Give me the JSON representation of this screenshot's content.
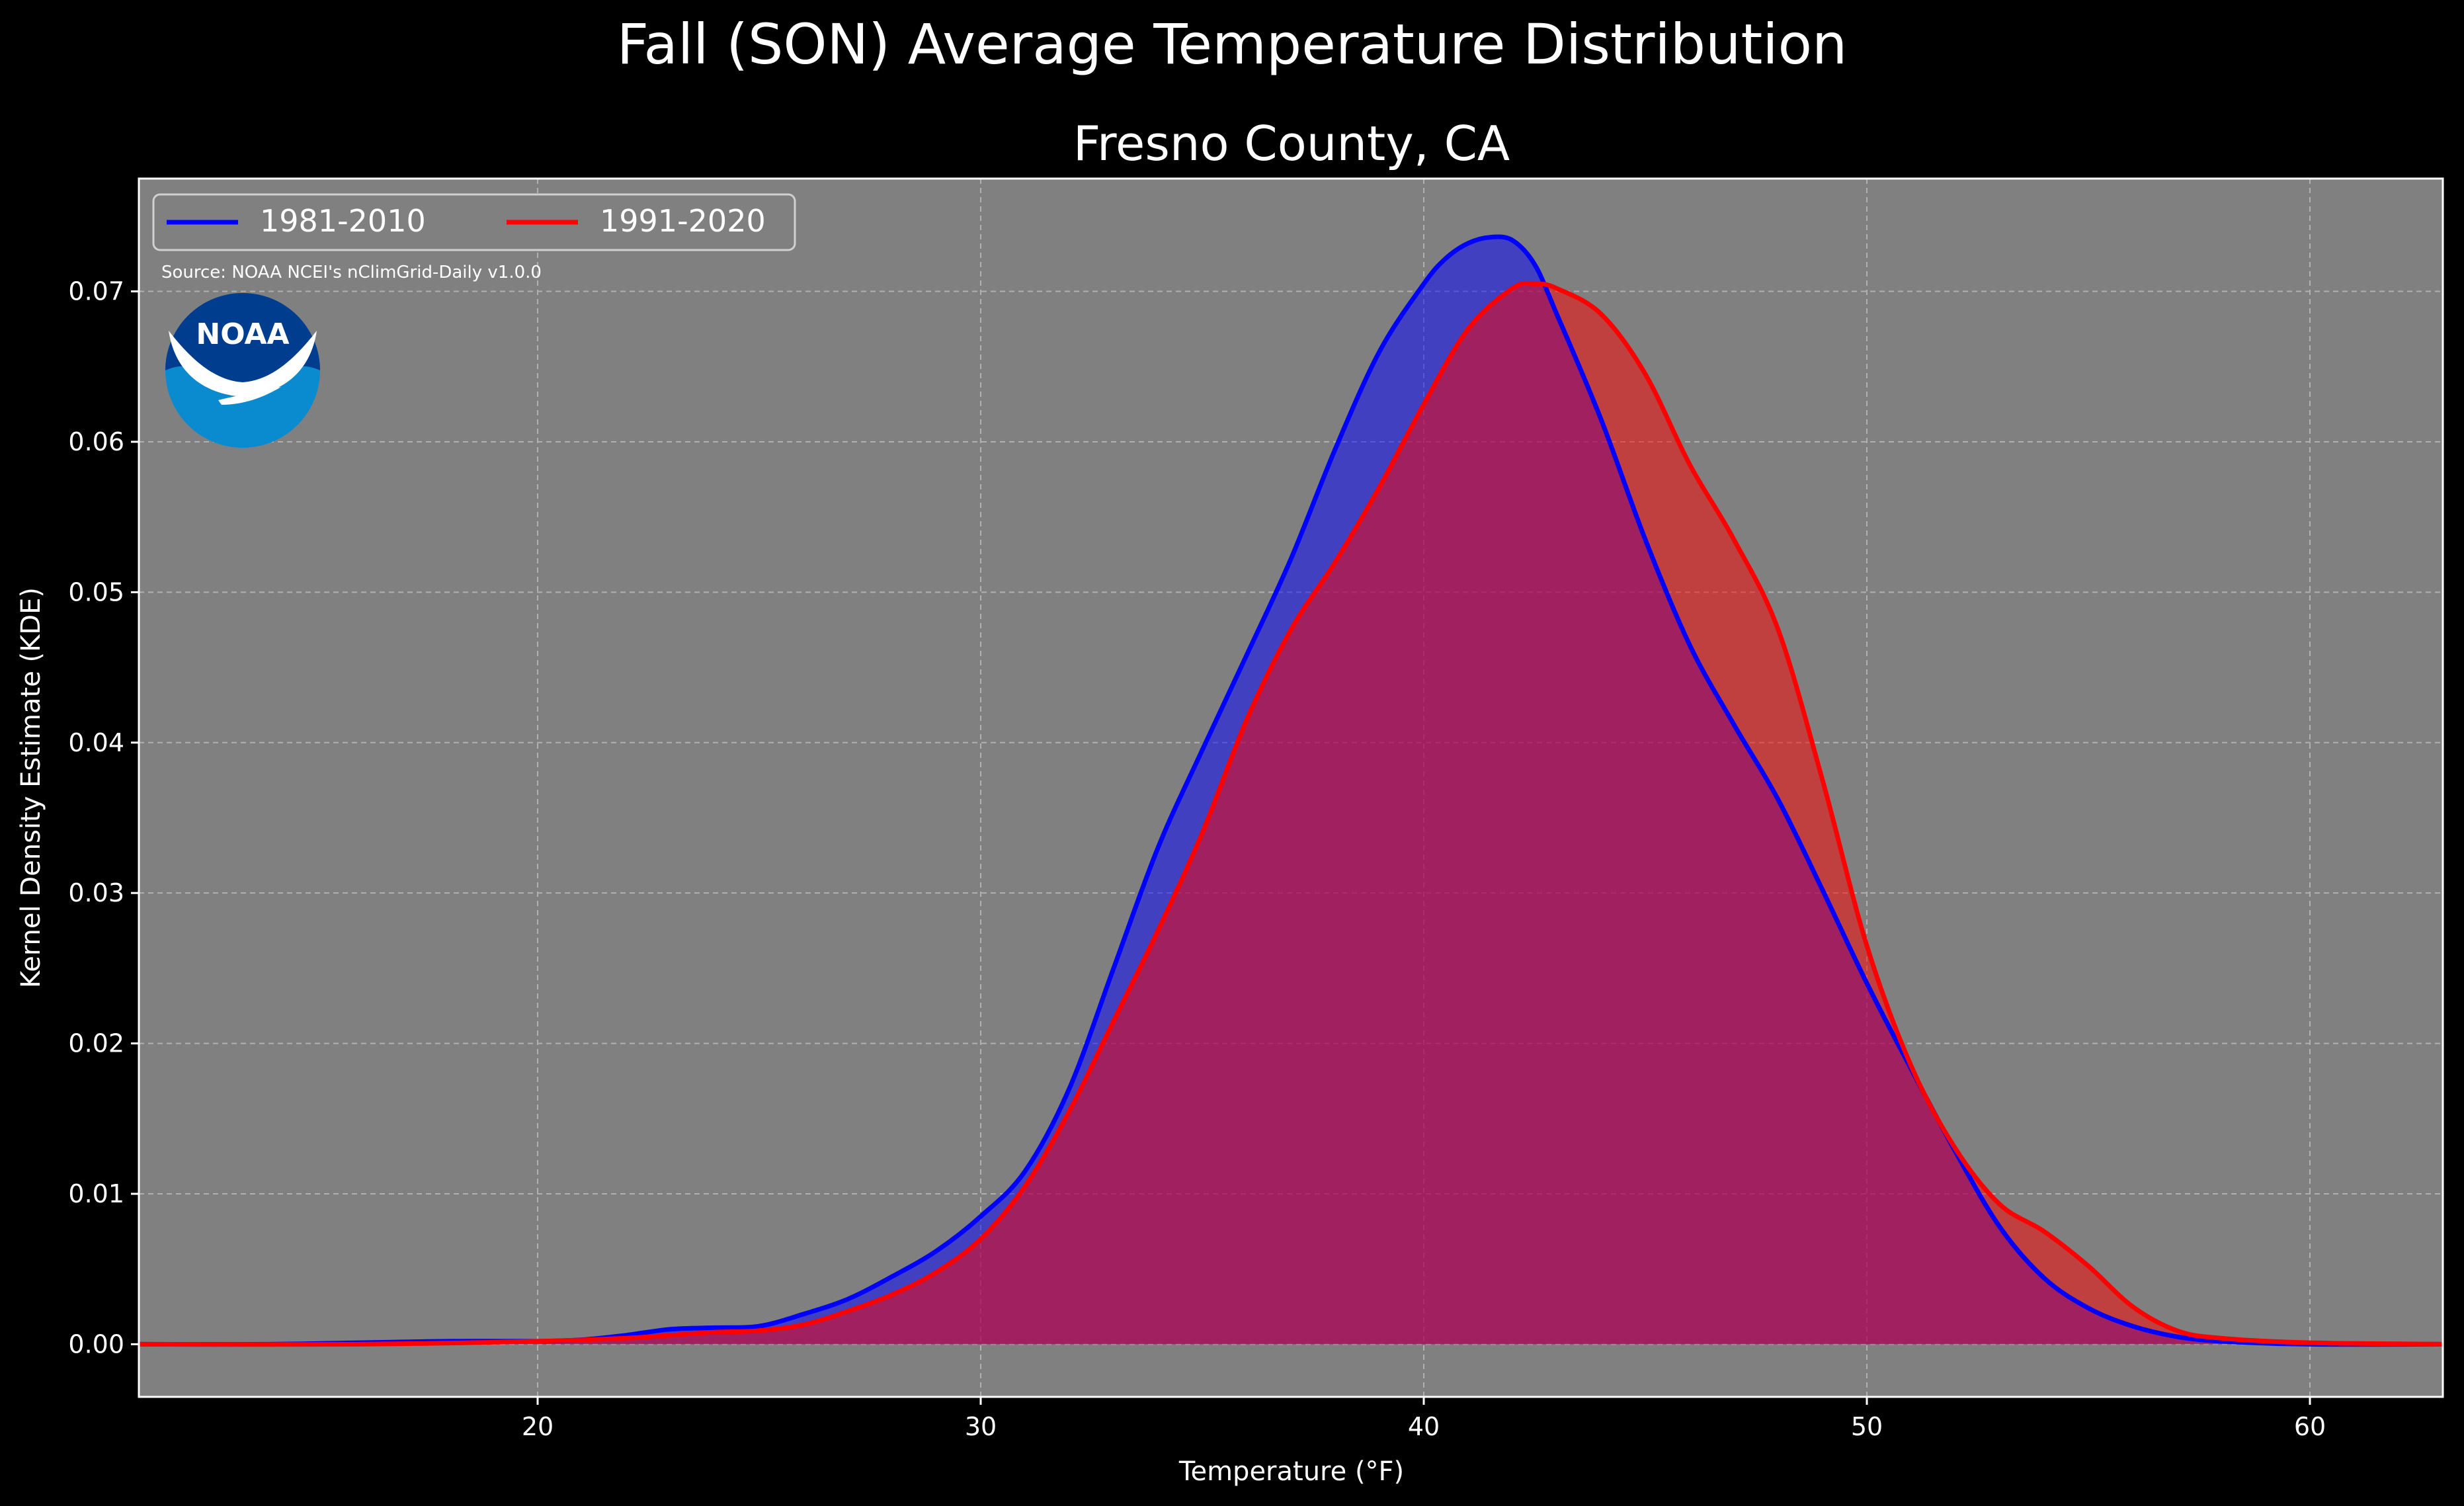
{
  "page": {
    "suptitle": "Fall (SON) Average Temperature Distribution"
  },
  "chart_data": {
    "type": "area",
    "title": "Fresno County, CA",
    "xlabel": "Temperature (°F)",
    "ylabel": "Kernel Density Estimate (KDE)",
    "xlim": [
      11,
      63
    ],
    "ylim": [
      -0.0035,
      0.0775
    ],
    "xticks": [
      20,
      30,
      40,
      50,
      60
    ],
    "yticks": [
      0.0,
      0.01,
      0.02,
      0.03,
      0.04,
      0.05,
      0.06,
      0.07
    ],
    "grid": true,
    "legend": "top-left",
    "source_note": "Source: NOAA NCEI's nClimGrid-Daily v1.0.0",
    "logo_text": "NOAA",
    "colors": {
      "background": "#000000",
      "axes_face": "#808080",
      "series_1": "#0000ff",
      "series_2": "#ff0000",
      "overlap_fill": "#9e1f5d"
    },
    "series": [
      {
        "name": "1981-2010",
        "color": "#0000ff",
        "x": [
          11,
          14,
          16,
          18,
          20,
          21,
          22,
          23,
          24,
          25,
          26,
          27,
          28,
          29,
          30,
          31,
          32,
          33,
          34,
          35,
          36,
          37,
          38,
          39,
          40,
          40.5,
          41,
          41.5,
          42,
          42.5,
          43,
          44,
          45,
          46,
          47,
          48,
          49,
          50,
          51,
          52,
          53,
          54,
          55,
          56,
          57,
          58,
          60,
          63
        ],
        "y": [
          0.0,
          0.0,
          0.0001,
          0.0002,
          0.0002,
          0.0003,
          0.0006,
          0.001,
          0.0011,
          0.0012,
          0.002,
          0.003,
          0.0045,
          0.0062,
          0.0085,
          0.0115,
          0.017,
          0.025,
          0.033,
          0.0395,
          0.0458,
          0.0522,
          0.0595,
          0.066,
          0.0705,
          0.0722,
          0.0732,
          0.0736,
          0.0734,
          0.0718,
          0.0685,
          0.0615,
          0.0535,
          0.0465,
          0.0412,
          0.0362,
          0.0302,
          0.024,
          0.0183,
          0.0128,
          0.0078,
          0.0044,
          0.0024,
          0.0012,
          0.0005,
          0.0002,
          0.0,
          0.0
        ]
      },
      {
        "name": "1991-2020",
        "color": "#ff0000",
        "x": [
          11,
          16,
          20,
          22,
          23,
          24,
          25,
          26,
          27,
          28,
          29,
          30,
          31,
          32,
          33,
          34,
          35,
          36,
          37,
          38,
          39,
          40,
          41,
          42,
          42.5,
          43,
          44,
          45,
          46,
          47,
          48,
          49,
          50,
          51,
          52,
          53,
          54,
          55,
          56,
          57,
          58,
          60,
          63
        ],
        "y": [
          0.0,
          0.0,
          0.0002,
          0.0004,
          0.0006,
          0.0008,
          0.0009,
          0.0013,
          0.0022,
          0.0033,
          0.0048,
          0.007,
          0.0105,
          0.0155,
          0.0215,
          0.0275,
          0.034,
          0.0415,
          0.0475,
          0.052,
          0.057,
          0.0625,
          0.0675,
          0.0702,
          0.0705,
          0.0702,
          0.0685,
          0.0645,
          0.0585,
          0.0535,
          0.0475,
          0.0375,
          0.0265,
          0.0185,
          0.013,
          0.0093,
          0.0075,
          0.0052,
          0.0025,
          0.0009,
          0.0004,
          0.0001,
          0.0
        ]
      }
    ]
  }
}
